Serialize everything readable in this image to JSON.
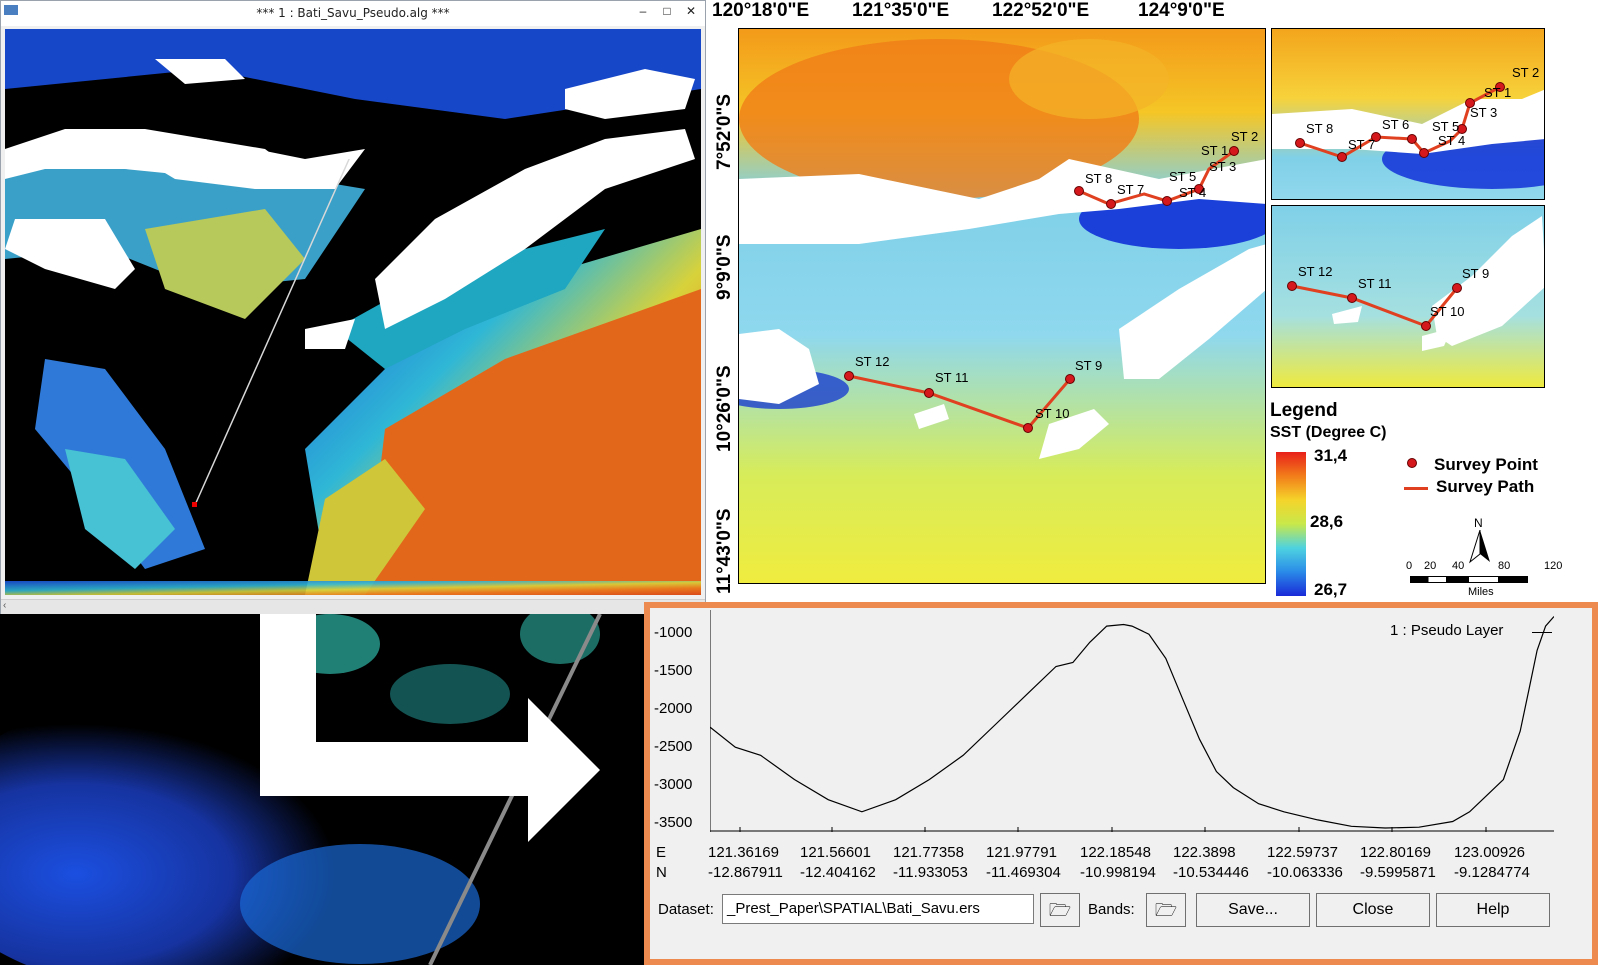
{
  "window": {
    "title": "*** 1 : Bati_Savu_Pseudo.alg ***",
    "minimize": "–",
    "maximize": "□",
    "close": "✕"
  },
  "map": {
    "lon_labels": [
      "120°18'0\"E",
      "121°35'0\"E",
      "122°52'0\"E",
      "124°9'0\"E"
    ],
    "lat_labels": [
      "7°52'0\"S",
      "9°9'0\"S",
      "10°26'0\"S",
      "11°43'0\"S"
    ],
    "stations_main": [
      "ST 2",
      "ST 1",
      "ST 3",
      "ST 8",
      "ST 7",
      "ST 5",
      "ST 4",
      "ST 12",
      "ST 11",
      "ST 9",
      "ST 10"
    ],
    "stations_inset_top": [
      "ST 2",
      "ST 1",
      "ST 3",
      "ST 8",
      "ST 7",
      "ST 6",
      "ST 5",
      "ST 4"
    ],
    "stations_inset_bottom": [
      "ST 12",
      "ST 11",
      "ST 9",
      "ST 10"
    ],
    "legend": {
      "title": "Legend",
      "subtitle": "SST (Degree C)",
      "max": "31,4",
      "mid": "28,6",
      "min": "26,7",
      "survey_point": "Survey Point",
      "survey_path": "Survey Path"
    },
    "north": "N",
    "scale": {
      "ticks": [
        "0",
        "20",
        "40",
        "80",
        "120"
      ],
      "unit": "Miles"
    }
  },
  "profile": {
    "y_ticks": [
      "-1000",
      "-1500",
      "-2000",
      "-2500",
      "-3000",
      "-3500"
    ],
    "series_label": "1 : Pseudo Layer",
    "row_E_label": "E",
    "row_N_label": "N",
    "E": [
      "121.36169",
      "121.56601",
      "121.77358",
      "121.97791",
      "122.18548",
      "122.3898",
      "122.59737",
      "122.80169",
      "123.00926"
    ],
    "N": [
      "-12.867911",
      "-12.404162",
      "-11.933053",
      "-11.469304",
      "-10.998194",
      "-10.534446",
      "-10.063336",
      "-9.5995871",
      "-9.1284774"
    ],
    "dataset_label": "Dataset:",
    "dataset_value": "_Prest_Paper\\SPATIAL\\Bati_Savu.ers",
    "bands_label": "Bands:",
    "save_label": "Save...",
    "close_label": "Close",
    "help_label": "Help"
  },
  "chart_data": {
    "type": "line",
    "title": "",
    "xlabel": "",
    "ylabel": "",
    "ylim": [
      -3550,
      -800
    ],
    "series": [
      {
        "name": "1 : Pseudo Layer",
        "x_fraction": [
          0.0,
          0.03,
          0.06,
          0.1,
          0.14,
          0.18,
          0.22,
          0.26,
          0.3,
          0.34,
          0.38,
          0.41,
          0.43,
          0.45,
          0.47,
          0.49,
          0.5,
          0.52,
          0.54,
          0.56,
          0.58,
          0.6,
          0.62,
          0.65,
          0.68,
          0.72,
          0.76,
          0.8,
          0.84,
          0.88,
          0.9,
          0.92,
          0.94,
          0.96,
          0.97,
          0.98,
          0.99,
          1.0
        ],
        "values": [
          -2250,
          -2500,
          -2600,
          -2900,
          -3150,
          -3300,
          -3150,
          -2900,
          -2600,
          -2200,
          -1800,
          -1500,
          -1450,
          -1200,
          -1000,
          -980,
          -1000,
          -1100,
          -1400,
          -1900,
          -2400,
          -2800,
          -3000,
          -3200,
          -3300,
          -3400,
          -3480,
          -3500,
          -3490,
          -3420,
          -3300,
          -3100,
          -2900,
          -2300,
          -1800,
          -1300,
          -1000,
          -880
        ]
      }
    ]
  }
}
